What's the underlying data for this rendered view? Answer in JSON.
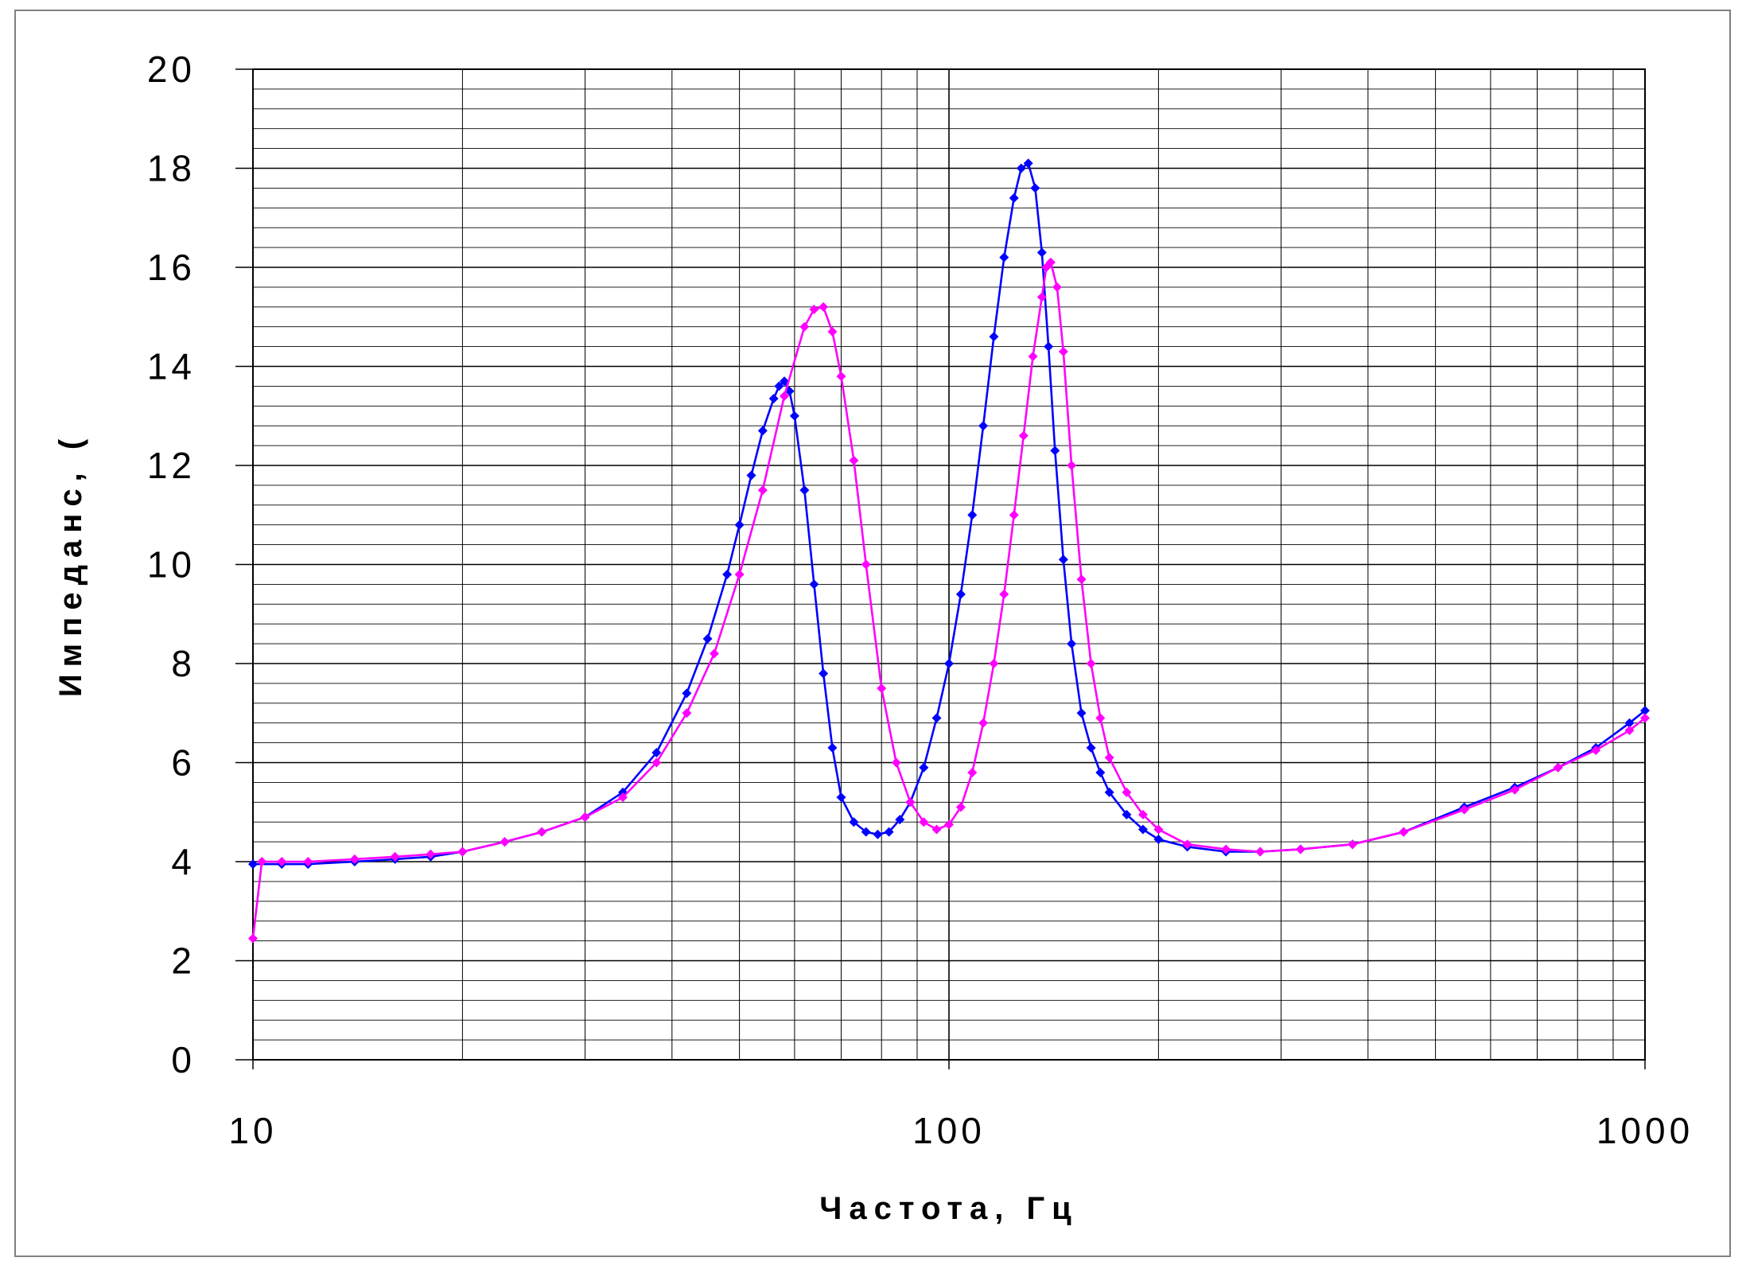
{
  "chart_data": {
    "type": "line",
    "xlabel": "Частота, Гц",
    "ylabel": "Импеданс, (",
    "xscale": "log",
    "xlim": [
      10,
      1000
    ],
    "ylim": [
      0,
      20
    ],
    "x_ticks": [
      "10",
      "100",
      "1000"
    ],
    "y_ticks": [
      "0",
      "2",
      "4",
      "6",
      "8",
      "10",
      "12",
      "14",
      "16",
      "18",
      "20"
    ],
    "grid": true,
    "legend": "none",
    "series": [
      {
        "color": "#0000ff",
        "x": [
          10,
          11,
          12,
          14,
          16,
          18,
          20,
          23,
          26,
          30,
          34,
          38,
          42,
          45,
          48,
          50,
          52,
          54,
          56,
          57,
          58,
          59,
          60,
          62,
          64,
          66,
          68,
          70,
          73,
          76,
          79,
          82,
          85,
          88,
          92,
          96,
          100,
          104,
          108,
          112,
          116,
          120,
          124,
          127,
          130,
          133,
          136,
          139,
          142,
          146,
          150,
          155,
          160,
          165,
          170,
          180,
          190,
          200,
          220,
          250,
          280,
          320,
          380,
          450,
          550,
          650,
          750,
          850,
          950,
          1000
        ],
        "y": [
          3.95,
          3.95,
          3.95,
          4.0,
          4.05,
          4.1,
          4.2,
          4.4,
          4.6,
          4.9,
          5.4,
          6.2,
          7.4,
          8.5,
          9.8,
          10.8,
          11.8,
          12.7,
          13.35,
          13.6,
          13.7,
          13.5,
          13.0,
          11.5,
          9.6,
          7.8,
          6.3,
          5.3,
          4.8,
          4.6,
          4.55,
          4.6,
          4.85,
          5.2,
          5.9,
          6.9,
          8.0,
          9.4,
          11.0,
          12.8,
          14.6,
          16.2,
          17.4,
          18.0,
          18.1,
          17.6,
          16.3,
          14.4,
          12.3,
          10.1,
          8.4,
          7.0,
          6.3,
          5.8,
          5.4,
          4.95,
          4.65,
          4.45,
          4.3,
          4.2,
          4.2,
          4.25,
          4.35,
          4.6,
          5.1,
          5.5,
          5.9,
          6.3,
          6.8,
          7.05
        ]
      },
      {
        "color": "#ff00ff",
        "x": [
          10,
          10.3,
          11,
          12,
          14,
          16,
          18,
          20,
          23,
          26,
          30,
          34,
          38,
          42,
          46,
          50,
          54,
          58,
          62,
          64,
          66,
          68,
          70,
          73,
          76,
          80,
          84,
          88,
          92,
          96,
          100,
          104,
          108,
          112,
          116,
          120,
          124,
          128,
          132,
          136,
          138,
          140,
          143,
          146,
          150,
          155,
          160,
          165,
          170,
          180,
          190,
          200,
          220,
          250,
          280,
          320,
          380,
          450,
          550,
          650,
          750,
          850,
          950,
          1000
        ],
        "y": [
          2.45,
          4.0,
          4.0,
          4.0,
          4.05,
          4.1,
          4.15,
          4.2,
          4.4,
          4.6,
          4.9,
          5.3,
          6.0,
          7.0,
          8.2,
          9.8,
          11.5,
          13.4,
          14.8,
          15.15,
          15.2,
          14.7,
          13.8,
          12.1,
          10.0,
          7.5,
          6.0,
          5.2,
          4.8,
          4.65,
          4.75,
          5.1,
          5.8,
          6.8,
          8.0,
          9.4,
          11.0,
          12.6,
          14.2,
          15.4,
          16.0,
          16.1,
          15.6,
          14.3,
          12.0,
          9.7,
          8.0,
          6.9,
          6.1,
          5.4,
          4.95,
          4.65,
          4.35,
          4.25,
          4.2,
          4.25,
          4.35,
          4.6,
          5.05,
          5.45,
          5.9,
          6.25,
          6.65,
          6.9
        ]
      }
    ]
  }
}
